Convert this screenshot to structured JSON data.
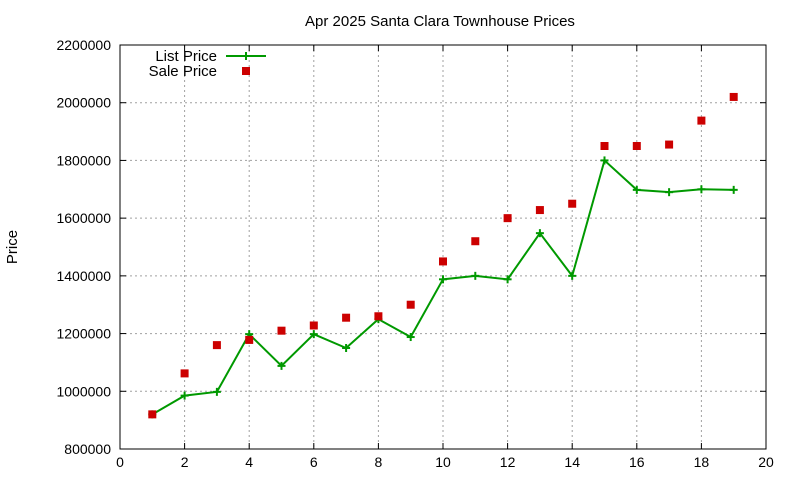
{
  "chart_data": {
    "type": "line",
    "title": "Apr 2025 Santa Clara Townhouse Prices",
    "xlabel": "",
    "ylabel": "Price",
    "xlim": [
      0,
      20
    ],
    "ylim": [
      800000,
      2200000
    ],
    "x_ticks": [
      0,
      2,
      4,
      6,
      8,
      10,
      12,
      14,
      16,
      18,
      20
    ],
    "y_ticks": [
      800000,
      1000000,
      1200000,
      1400000,
      1600000,
      1800000,
      2000000,
      2200000
    ],
    "grid": true,
    "legend_position": "top-left",
    "series": [
      {
        "name": "List Price",
        "style": "line-with-plus-markers",
        "color": "#009900",
        "x": [
          1,
          2,
          3,
          4,
          5,
          6,
          7,
          8,
          9,
          10,
          11,
          12,
          13,
          14,
          15,
          16,
          17,
          18,
          19
        ],
        "values": [
          920000,
          985000,
          998000,
          1198000,
          1088000,
          1198000,
          1150000,
          1250000,
          1188000,
          1388000,
          1400000,
          1388000,
          1548000,
          1400000,
          1800000,
          1698000,
          1690000,
          1700000,
          1698000
        ]
      },
      {
        "name": "Sale Price",
        "style": "square-markers",
        "color": "#cc0000",
        "x": [
          1,
          2,
          3,
          4,
          5,
          6,
          7,
          8,
          9,
          10,
          11,
          12,
          13,
          14,
          15,
          16,
          17,
          18,
          19
        ],
        "values": [
          920000,
          1062000,
          1160000,
          1178000,
          1210000,
          1228000,
          1255000,
          1260000,
          1300000,
          1450000,
          1520000,
          1600000,
          1628000,
          1650000,
          1850000,
          1850000,
          1855000,
          1938000,
          2020000
        ]
      }
    ]
  }
}
